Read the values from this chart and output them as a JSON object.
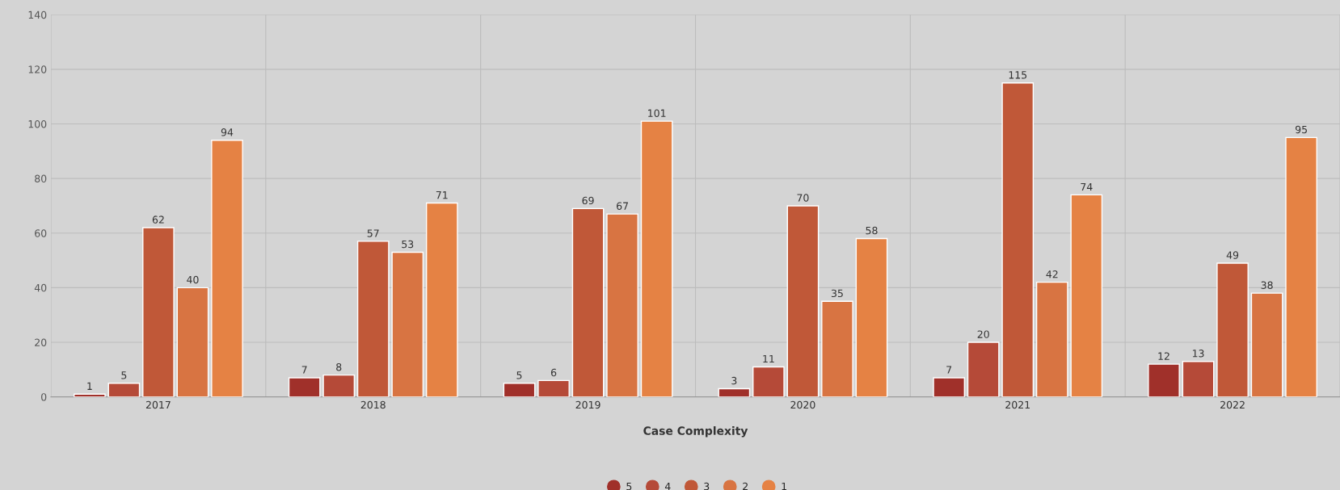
{
  "chart_data": {
    "type": "bar",
    "xlabel": "Case Complexity",
    "categories": [
      "2017",
      "2018",
      "2019",
      "2020",
      "2021",
      "2022"
    ],
    "series": [
      {
        "name": "5",
        "color": "#a0302a",
        "values": [
          1,
          7,
          5,
          3,
          7,
          12
        ]
      },
      {
        "name": "4",
        "color": "#b54a38",
        "values": [
          5,
          8,
          6,
          11,
          20,
          13
        ]
      },
      {
        "name": "3",
        "color": "#c05838",
        "values": [
          62,
          57,
          69,
          70,
          115,
          49
        ]
      },
      {
        "name": "2",
        "color": "#d87442",
        "values": [
          40,
          53,
          67,
          35,
          42,
          38
        ]
      },
      {
        "name": "1",
        "color": "#e58244",
        "values": [
          94,
          71,
          101,
          58,
          74,
          95
        ]
      }
    ],
    "ylim": [
      0,
      140
    ],
    "yticks": [
      0,
      20,
      40,
      60,
      80,
      100,
      120,
      140
    ],
    "grid": true,
    "legend": "bottom",
    "data_labels": true
  }
}
